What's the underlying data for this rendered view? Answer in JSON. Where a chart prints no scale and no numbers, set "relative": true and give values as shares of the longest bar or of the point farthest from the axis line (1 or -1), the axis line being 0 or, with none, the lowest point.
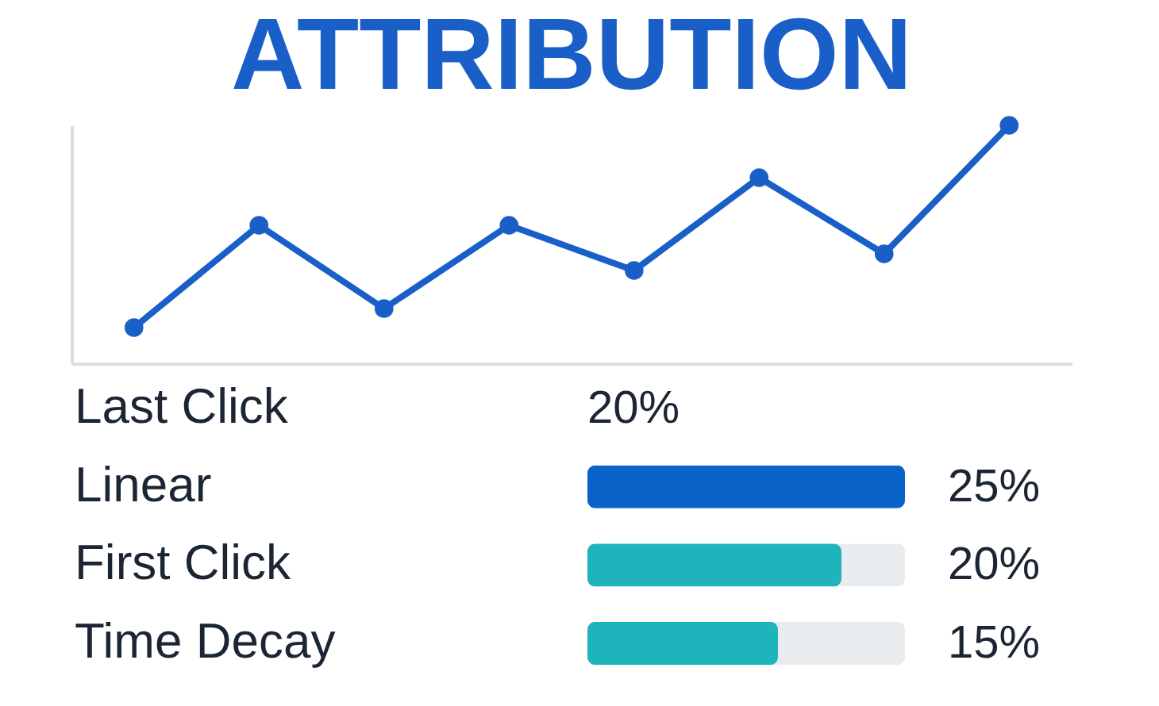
{
  "chart_data": [
    {
      "type": "line",
      "title": "ATTRIBUTION",
      "relative": true,
      "categories": [
        null,
        null,
        null,
        null,
        null,
        null,
        null,
        null
      ],
      "series": [
        {
          "color": "#1a5fc8",
          "values": [
            0.15,
            0.58,
            0.23,
            0.58,
            0.39,
            0.78,
            0.46,
            1
          ]
        }
      ],
      "marker": "circle",
      "tick_labels": false
    },
    {
      "type": "bar",
      "orientation": "horizontal",
      "xlim": [
        0,
        25
      ],
      "tick_labels": false,
      "categories": [
        "Last Click",
        "Linear",
        "First Click",
        "Time Decay"
      ],
      "values": [
        null,
        25,
        20,
        15
      ],
      "colors": [
        "#1fb3bb",
        "#0a63c9",
        "#1fb3bb",
        "#1fb3bb"
      ],
      "value_labels": [
        "20%",
        "25%",
        "20%",
        "15%"
      ]
    }
  ]
}
